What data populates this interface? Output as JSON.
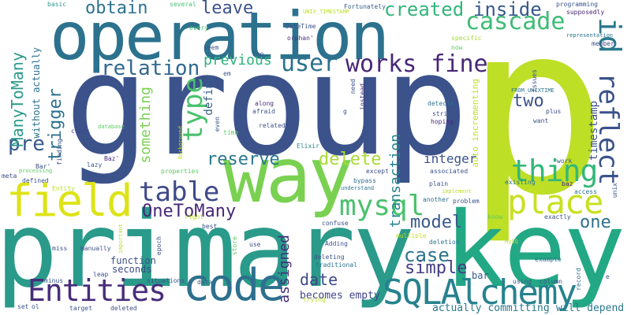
{
  "words": [
    {
      "text": "group",
      "color": "#3b528b"
    },
    {
      "text": "p",
      "color": "#bddf26"
    },
    {
      "text": "primary",
      "color": "#2a9a8a"
    },
    {
      "text": "key",
      "color": "#22a884"
    },
    {
      "text": "operation",
      "color": "#2c728e"
    },
    {
      "text": "way",
      "color": "#7ad151"
    },
    {
      "text": "field",
      "color": "#dde318"
    },
    {
      "text": "code",
      "color": "#2d708e"
    },
    {
      "text": "place",
      "color": "#c8e020"
    },
    {
      "text": "SQLAlchemy",
      "color": "#26828e"
    },
    {
      "text": "Entities",
      "color": "#472d7b"
    },
    {
      "text": "thing",
      "color": "#35b779"
    },
    {
      "text": "table",
      "color": "#3e4a89"
    },
    {
      "text": "reflect",
      "color": "#3b528b"
    },
    {
      "text": "id",
      "color": "#2a788e"
    },
    {
      "text": "mysql",
      "color": "#4ac16d"
    },
    {
      "text": "cascade",
      "color": "#3dbc74"
    },
    {
      "text": "user",
      "color": "#2c728e"
    },
    {
      "text": "type",
      "color": "#4ac16d"
    },
    {
      "text": "works fine",
      "color": "#482878"
    },
    {
      "text": "relation",
      "color": "#31688e"
    },
    {
      "text": "created",
      "color": "#34b679"
    },
    {
      "text": "inside",
      "color": "#38598c"
    },
    {
      "text": "obtain",
      "color": "#2c728e"
    },
    {
      "text": "leave",
      "color": "#3b528b"
    },
    {
      "text": "previous",
      "color": "#2eb37c"
    },
    {
      "text": "reserve",
      "color": "#2a788e"
    },
    {
      "text": "delete",
      "color": "#a8db34"
    },
    {
      "text": "integer",
      "color": "#3b528b"
    },
    {
      "text": "OneToMany",
      "color": "#482878"
    },
    {
      "text": "model",
      "color": "#38598c"
    },
    {
      "text": "one",
      "color": "#2d708e"
    },
    {
      "text": "case",
      "color": "#2c728e"
    },
    {
      "text": "simple",
      "color": "#433e85"
    },
    {
      "text": "date",
      "color": "#3e4989"
    },
    {
      "text": "assigned",
      "color": "#472d7b"
    },
    {
      "text": "two",
      "color": "#3b528b"
    },
    {
      "text": "pre",
      "color": "#38598c"
    },
    {
      "text": "trigger",
      "color": "#2c728e"
    },
    {
      "text": "ManyToMany",
      "color": "#2a9a8a"
    },
    {
      "text": "something",
      "color": "#7ad151"
    },
    {
      "text": "transaction",
      "color": "#26828e"
    },
    {
      "text": "timestamp",
      "color": "#3b528b"
    },
    {
      "text": "define",
      "color": "#355f8d"
    },
    {
      "text": "becomes empty",
      "color": "#414487"
    },
    {
      "text": "actually committing",
      "color": "#2a788e"
    },
    {
      "text": "will depend",
      "color": "#2a788e"
    },
    {
      "text": "auto incrementing",
      "color": "#bddf26"
    },
    {
      "text": "without actually",
      "color": "#2c728e"
    },
    {
      "text": "function",
      "color": "#3b528b"
    },
    {
      "text": "seconds",
      "color": "#3e4989"
    },
    {
      "text": "bar",
      "color": "#38598c"
    },
    {
      "text": "hoping",
      "color": "#482878"
    },
    {
      "text": "Elixir",
      "color": "#25858e"
    },
    {
      "text": "basic",
      "color": "#2a9a8a"
    },
    {
      "text": "several",
      "color": "#44bf70"
    },
    {
      "text": "UNIX_TIMESTAMP",
      "color": "#bddf26"
    },
    {
      "text": "Fortunately",
      "color": "#355f8d"
    },
    {
      "text": "programming",
      "color": "#3b528b"
    },
    {
      "text": "supposedly",
      "color": "#482878"
    },
    {
      "text": "representation",
      "color": "#2c728e"
    },
    {
      "text": "member",
      "color": "#3e4989"
    },
    {
      "text": "every",
      "color": "#4ac16d"
    },
    {
      "text": "DateTime",
      "color": "#3b528b"
    },
    {
      "text": "orphan'",
      "color": "#472d7b"
    },
    {
      "text": "specific",
      "color": "#a0da39"
    },
    {
      "text": "now",
      "color": "#5ec962"
    },
    {
      "text": "seem",
      "color": "#3b528b"
    },
    {
      "text": "Foo",
      "color": "#3b528b"
    },
    {
      "text": "FROM_UNIXTIME",
      "color": "#2c728e"
    },
    {
      "text": "plus",
      "color": "#3e4989"
    },
    {
      "text": "want",
      "color": "#3b528b"
    },
    {
      "text": "issues",
      "color": "#3b528b"
    },
    {
      "text": "em",
      "color": "#3b528b"
    },
    {
      "text": "need",
      "color": "#3b528b"
    },
    {
      "text": "instead",
      "color": "#472d7b"
    },
    {
      "text": "g",
      "color": "#3b528b"
    },
    {
      "text": "along",
      "color": "#482878"
    },
    {
      "text": "afraid",
      "color": "#3b528b"
    },
    {
      "text": "related",
      "color": "#3b528b"
    },
    {
      "text": "detects",
      "color": "#2c728e"
    },
    {
      "text": "string",
      "color": "#3b528b"
    },
    {
      "text": "even",
      "color": "#3b528b"
    },
    {
      "text": "time",
      "color": "#5ec962"
    },
    {
      "text": "database",
      "color": "#5ec962"
    },
    {
      "text": "class",
      "color": "#3e4989"
    },
    {
      "text": "Background",
      "color": "#bddf26"
    },
    {
      "text": "lazy",
      "color": "#3b528b"
    },
    {
      "text": "Baz'",
      "color": "#482878"
    },
    {
      "text": "finding",
      "color": "#3b528b"
    },
    {
      "text": "Bar'",
      "color": "#3b528b"
    },
    {
      "text": "meta",
      "color": "#3b528b"
    },
    {
      "text": "processing",
      "color": "#5ec962"
    },
    {
      "text": "defined",
      "color": "#3b528b"
    },
    {
      "text": "Entity",
      "color": "#bddf26"
    },
    {
      "text": "properties",
      "color": "#5ec962"
    },
    {
      "text": "except",
      "color": "#3b528b"
    },
    {
      "text": "associated",
      "color": "#3b528b"
    },
    {
      "text": "bypass",
      "color": "#2c728e"
    },
    {
      "text": "understand",
      "color": "#2c728e"
    },
    {
      "text": "plain",
      "color": "#3b528b"
    },
    {
      "text": "implement",
      "color": "#bddf26"
    },
    {
      "text": "existing",
      "color": "#2c728e"
    },
    {
      "text": "work",
      "color": "#3b528b"
    },
    {
      "text": "baz",
      "color": "#482878"
    },
    {
      "text": "access",
      "color": "#2c728e"
    },
    {
      "text": "unix",
      "color": "#3b528b"
    },
    {
      "text": "another",
      "color": "#2c728e"
    },
    {
      "text": "problem",
      "color": "#3b528b"
    },
    {
      "text": "know",
      "color": "#5ec962"
    },
    {
      "text": "exactly",
      "color": "#3b528b"
    },
    {
      "text": "right",
      "color": "#bddf26"
    },
    {
      "text": "best",
      "color": "#3b528b"
    },
    {
      "text": "confuse",
      "color": "#3b528b"
    },
    {
      "text": "miss",
      "color": "#3b528b"
    },
    {
      "text": "manually",
      "color": "#3b528b"
    },
    {
      "text": "important",
      "color": "#bddf26"
    },
    {
      "text": "epoch",
      "color": "#3b528b"
    },
    {
      "text": "store",
      "color": "#5ec962"
    },
    {
      "text": "use",
      "color": "#3b528b"
    },
    {
      "text": "Adding",
      "color": "#3b528b"
    },
    {
      "text": "multiple",
      "color": "#bddf26"
    },
    {
      "text": "deletion",
      "color": "#2c728e"
    },
    {
      "text": "MySQ",
      "color": "#bddf26"
    },
    {
      "text": "example",
      "color": "#2c728e"
    },
    {
      "text": "record",
      "color": "#2c728e"
    },
    {
      "text": "column",
      "color": "#3b528b"
    },
    {
      "text": "leap",
      "color": "#3b528b"
    },
    {
      "text": "minus",
      "color": "#3b528b"
    },
    {
      "text": "situations",
      "color": "#3b528b"
    },
    {
      "text": "data",
      "color": "#3b528b"
    },
    {
      "text": "deleting",
      "color": "#3b528b"
    },
    {
      "text": "traditional",
      "color": "#2c728e"
    },
    {
      "text": "using",
      "color": "#3b528b"
    },
    {
      "text": "e",
      "color": "#3b528b"
    },
    {
      "text": "set",
      "color": "#3b528b"
    },
    {
      "text": "ol",
      "color": "#3b528b"
    },
    {
      "text": "target",
      "color": "#3b528b"
    },
    {
      "text": "deleted",
      "color": "#3b528b"
    },
    {
      "text": "trying",
      "color": "#bddf26"
    }
  ]
}
